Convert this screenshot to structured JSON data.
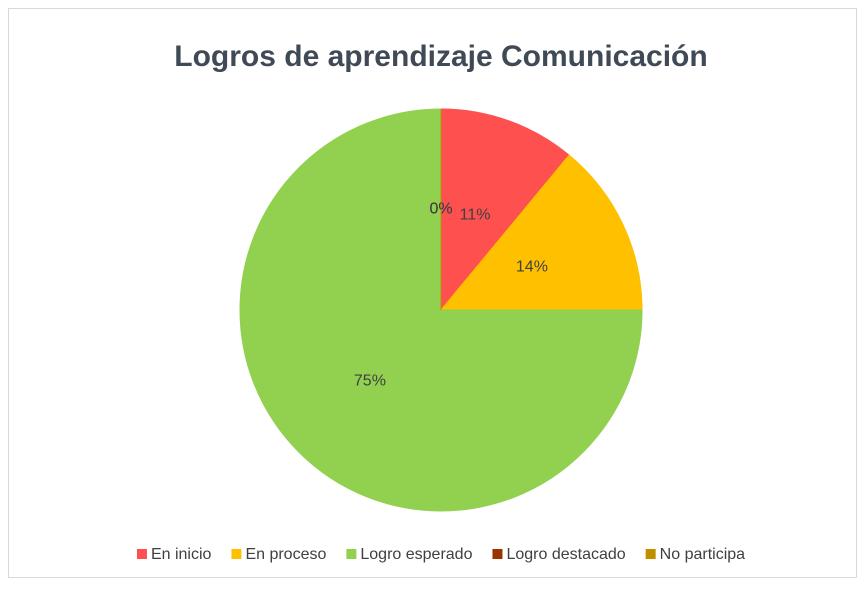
{
  "chart_data": {
    "type": "pie",
    "title": "Logros de aprendizaje Comunicación",
    "categories": [
      "En inicio",
      "En proceso",
      "Logro esperado",
      "Logro destacado",
      "No participa"
    ],
    "values": [
      11,
      14,
      75,
      0,
      0
    ],
    "value_labels": [
      "11%",
      "14%",
      "75%",
      "0%",
      "0%"
    ],
    "colors": [
      "#ff5050",
      "#ffc000",
      "#92d050",
      "#993300",
      "#bf8f00"
    ],
    "legend": "bottom"
  }
}
